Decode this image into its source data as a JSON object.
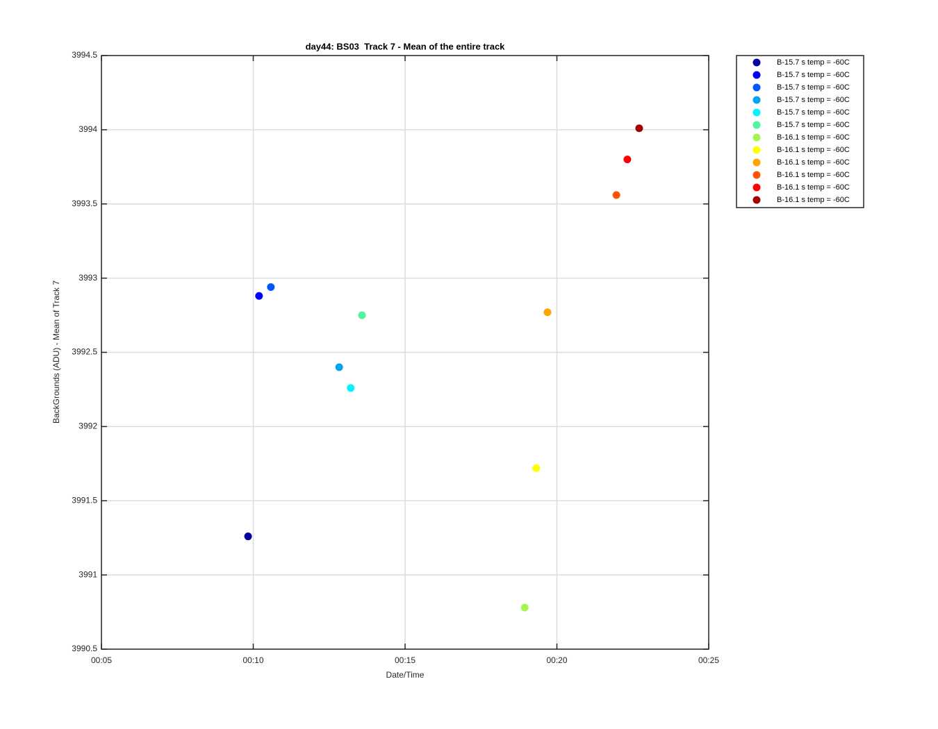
{
  "chart_data": {
    "type": "scatter",
    "title": "day44: BS03  Track 7 - Mean of the entire track",
    "x_label": "Date/Time",
    "y_label": "BackGrounds (ADU) - Mean of Track 7",
    "xlim": [
      5,
      25
    ],
    "xticks": [
      {
        "value": 5,
        "label": "00:05"
      },
      {
        "value": 10,
        "label": "00:10"
      },
      {
        "value": 15,
        "label": "00:15"
      },
      {
        "value": 20,
        "label": "00:20"
      },
      {
        "value": 25,
        "label": "00:25"
      }
    ],
    "ylim": [
      3990.5,
      3994.5
    ],
    "yticks": [
      3990.5,
      3991,
      3991.5,
      3992,
      3992.5,
      3993,
      3993.5,
      3994,
      3994.5
    ],
    "grid": true,
    "legend_position": "outside-right",
    "series": [
      {
        "name": "B-15.7 s temp = -60C",
        "color": "#0000a0",
        "x": [
          9.83
        ],
        "values": [
          3991.26
        ]
      },
      {
        "name": "B-15.7 s temp = -60C",
        "color": "#0000ff",
        "x": [
          10.19
        ],
        "values": [
          3992.88
        ]
      },
      {
        "name": "B-15.7 s temp = -60C",
        "color": "#0055ff",
        "x": [
          10.58
        ],
        "values": [
          3992.94
        ]
      },
      {
        "name": "B-15.7 s temp = -60C",
        "color": "#00a5f0",
        "x": [
          12.83
        ],
        "values": [
          3992.4
        ]
      },
      {
        "name": "B-15.7 s temp = -60C",
        "color": "#00f5ff",
        "x": [
          13.21
        ],
        "values": [
          3992.26
        ]
      },
      {
        "name": "B-15.7 s temp = -60C",
        "color": "#50f5a0",
        "x": [
          13.58
        ],
        "values": [
          3992.75
        ]
      },
      {
        "name": "B-16.1 s temp = -60C",
        "color": "#a5f550",
        "x": [
          18.94
        ],
        "values": [
          3990.78
        ]
      },
      {
        "name": "B-16.1 s temp = -60C",
        "color": "#ffff00",
        "x": [
          19.32
        ],
        "values": [
          3991.72
        ]
      },
      {
        "name": "B-16.1 s temp = -60C",
        "color": "#ffa500",
        "x": [
          19.69
        ],
        "values": [
          3992.77
        ]
      },
      {
        "name": "B-16.1 s temp = -60C",
        "color": "#ff5500",
        "x": [
          21.96
        ],
        "values": [
          3993.56
        ]
      },
      {
        "name": "B-16.1 s temp = -60C",
        "color": "#ff0000",
        "x": [
          22.32
        ],
        "values": [
          3993.8
        ]
      },
      {
        "name": "B-16.1 s temp = -60C",
        "color": "#a50000",
        "x": [
          22.71
        ],
        "values": [
          3994.01
        ]
      }
    ]
  }
}
